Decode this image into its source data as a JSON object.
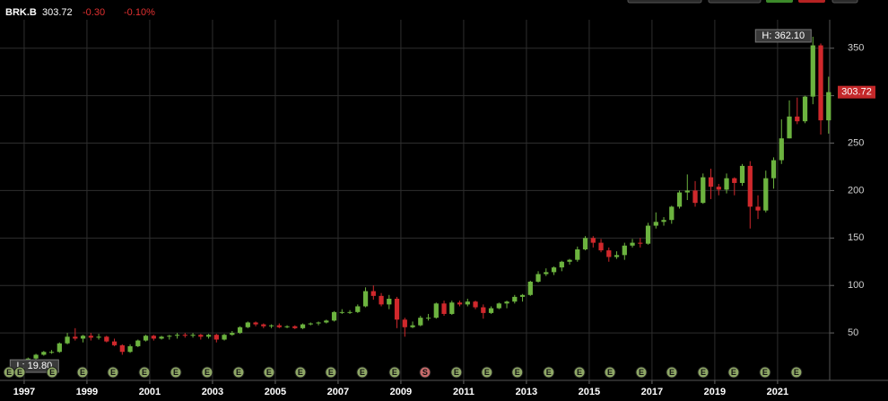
{
  "chart_data": {
    "type": "candlestick",
    "title": "BRK.B",
    "change": "-0.30",
    "change_pct": "-0.10%",
    "high_label": "H: 362.10",
    "low_label": "L: 19.80",
    "up_color": "#6cb33f",
    "down_color": "#d0282c",
    "grid": true,
    "xlim": [
      1996.23,
      2022.66
    ],
    "ylim": [
      0,
      380
    ],
    "xticks": [
      1997,
      1999,
      2001,
      2003,
      2005,
      2007,
      2009,
      2011,
      2013,
      2015,
      2017,
      2019,
      2021
    ],
    "yticks": [
      50,
      100,
      150,
      200,
      250,
      300,
      350
    ],
    "x": [
      1997.125,
      1997.375,
      1997.625,
      1997.875,
      1998.125,
      1998.375,
      1998.625,
      1998.875,
      1999.125,
      1999.375,
      1999.625,
      1999.875,
      2000.125,
      2000.375,
      2000.625,
      2000.875,
      2001.125,
      2001.375,
      2001.625,
      2001.875,
      2002.125,
      2002.375,
      2002.625,
      2002.875,
      2003.125,
      2003.375,
      2003.625,
      2003.875,
      2004.125,
      2004.375,
      2004.625,
      2004.875,
      2005.125,
      2005.375,
      2005.625,
      2005.875,
      2006.125,
      2006.375,
      2006.625,
      2006.875,
      2007.125,
      2007.375,
      2007.625,
      2007.875,
      2008.125,
      2008.375,
      2008.625,
      2008.875,
      2009.125,
      2009.375,
      2009.625,
      2009.875,
      2010.125,
      2010.375,
      2010.625,
      2010.875,
      2011.125,
      2011.375,
      2011.625,
      2011.875,
      2012.125,
      2012.375,
      2012.625,
      2012.875,
      2013.125,
      2013.375,
      2013.625,
      2013.875,
      2014.125,
      2014.375,
      2014.625,
      2014.875,
      2015.125,
      2015.375,
      2015.625,
      2015.875,
      2016.125,
      2016.375,
      2016.625,
      2016.875,
      2017.125,
      2017.375,
      2017.625,
      2017.875,
      2018.125,
      2018.375,
      2018.625,
      2018.875,
      2019.125,
      2019.375,
      2019.625,
      2019.875,
      2020.125,
      2020.375,
      2020.625,
      2020.875,
      2021.125,
      2021.375,
      2021.625,
      2021.875,
      2022.125,
      2022.375,
      2022.625
    ],
    "ohlc": [
      [
        20,
        24,
        19.8,
        23
      ],
      [
        23,
        28,
        22,
        27
      ],
      [
        27,
        31,
        26,
        30
      ],
      [
        30,
        32,
        28,
        30
      ],
      [
        30,
        40,
        29,
        39
      ],
      [
        39,
        50,
        38,
        46
      ],
      [
        46,
        55,
        42,
        44
      ],
      [
        44,
        48,
        40,
        47
      ],
      [
        47,
        50,
        42,
        45
      ],
      [
        45,
        49,
        43,
        46
      ],
      [
        46,
        47,
        40,
        41
      ],
      [
        41,
        44,
        36,
        37
      ],
      [
        37,
        38,
        27,
        30
      ],
      [
        30,
        38,
        29,
        36
      ],
      [
        36,
        43,
        35,
        42
      ],
      [
        42,
        48,
        41,
        47
      ],
      [
        47,
        48,
        42,
        44
      ],
      [
        44,
        47,
        43,
        46
      ],
      [
        46,
        48,
        43,
        47
      ],
      [
        47,
        50,
        44,
        48
      ],
      [
        48,
        50,
        45,
        47
      ],
      [
        47,
        50,
        45,
        48
      ],
      [
        48,
        49,
        43,
        46
      ],
      [
        46,
        49,
        44,
        48
      ],
      [
        48,
        49,
        40,
        43
      ],
      [
        43,
        49,
        42,
        48
      ],
      [
        48,
        52,
        47,
        50
      ],
      [
        50,
        57,
        49,
        56
      ],
      [
        56,
        62,
        55,
        61
      ],
      [
        61,
        62,
        57,
        59
      ],
      [
        59,
        60,
        55,
        57
      ],
      [
        57,
        59,
        55,
        58
      ],
      [
        58,
        60,
        55,
        56
      ],
      [
        56,
        58,
        55,
        57
      ],
      [
        57,
        58,
        54,
        55
      ],
      [
        55,
        60,
        54,
        59
      ],
      [
        59,
        61,
        58,
        60
      ],
      [
        60,
        62,
        58,
        61
      ],
      [
        61,
        64,
        60,
        63
      ],
      [
        63,
        73,
        62,
        72
      ],
      [
        72,
        75,
        70,
        72
      ],
      [
        72,
        74,
        70,
        72
      ],
      [
        72,
        80,
        71,
        78
      ],
      [
        78,
        98,
        77,
        94
      ],
      [
        94,
        100,
        85,
        89
      ],
      [
        89,
        92,
        78,
        80
      ],
      [
        80,
        90,
        75,
        86
      ],
      [
        86,
        88,
        55,
        64
      ],
      [
        64,
        66,
        46,
        56
      ],
      [
        56,
        62,
        55,
        58
      ],
      [
        58,
        68,
        57,
        66
      ],
      [
        66,
        70,
        63,
        66
      ],
      [
        66,
        82,
        65,
        81
      ],
      [
        81,
        84,
        68,
        70
      ],
      [
        70,
        84,
        69,
        82
      ],
      [
        82,
        84,
        78,
        80
      ],
      [
        80,
        86,
        78,
        83
      ],
      [
        83,
        84,
        75,
        77
      ],
      [
        77,
        80,
        65,
        71
      ],
      [
        71,
        78,
        70,
        76
      ],
      [
        76,
        82,
        75,
        81
      ],
      [
        81,
        84,
        76,
        83
      ],
      [
        83,
        90,
        81,
        88
      ],
      [
        88,
        91,
        83,
        90
      ],
      [
        90,
        105,
        89,
        104
      ],
      [
        104,
        115,
        103,
        112
      ],
      [
        112,
        118,
        110,
        114
      ],
      [
        114,
        120,
        111,
        119
      ],
      [
        119,
        126,
        115,
        125
      ],
      [
        125,
        128,
        122,
        127
      ],
      [
        127,
        141,
        125,
        138
      ],
      [
        138,
        152,
        137,
        150
      ],
      [
        150,
        152,
        140,
        145
      ],
      [
        145,
        149,
        135,
        137
      ],
      [
        137,
        140,
        125,
        130
      ],
      [
        130,
        136,
        128,
        132
      ],
      [
        132,
        145,
        127,
        142
      ],
      [
        142,
        149,
        140,
        145
      ],
      [
        145,
        150,
        140,
        144
      ],
      [
        144,
        166,
        143,
        163
      ],
      [
        163,
        177,
        160,
        167
      ],
      [
        167,
        172,
        163,
        169
      ],
      [
        169,
        184,
        165,
        183
      ],
      [
        183,
        200,
        181,
        198
      ],
      [
        198,
        217,
        190,
        200
      ],
      [
        200,
        210,
        183,
        187
      ],
      [
        187,
        218,
        186,
        214
      ],
      [
        214,
        223,
        191,
        204
      ],
      [
        204,
        207,
        195,
        201
      ],
      [
        201,
        218,
        197,
        213
      ],
      [
        213,
        214,
        195,
        208
      ],
      [
        208,
        228,
        205,
        226
      ],
      [
        226,
        231,
        160,
        183
      ],
      [
        183,
        195,
        170,
        179
      ],
      [
        179,
        221,
        177,
        213
      ],
      [
        213,
        235,
        202,
        232
      ],
      [
        232,
        275,
        228,
        255
      ],
      [
        255,
        295,
        255,
        278
      ],
      [
        278,
        298,
        270,
        273
      ],
      [
        273,
        300,
        271,
        299
      ],
      [
        299,
        362.1,
        291,
        353
      ],
      [
        353,
        355,
        259,
        274
      ],
      [
        274,
        320,
        260,
        303.72
      ]
    ],
    "events": [
      {
        "x": 1996.52,
        "label": "E"
      },
      {
        "x": 1996.86,
        "label": "E"
      },
      {
        "x": 1997.89,
        "label": "E"
      },
      {
        "x": 1998.86,
        "label": "E"
      },
      {
        "x": 1999.83,
        "label": "E"
      },
      {
        "x": 2000.83,
        "label": "E"
      },
      {
        "x": 2001.83,
        "label": "E"
      },
      {
        "x": 2002.83,
        "label": "E"
      },
      {
        "x": 2003.83,
        "label": "E"
      },
      {
        "x": 2004.8,
        "label": "E"
      },
      {
        "x": 2005.8,
        "label": "E"
      },
      {
        "x": 2006.77,
        "label": "E"
      },
      {
        "x": 2007.77,
        "label": "E"
      },
      {
        "x": 2008.8,
        "label": "E"
      },
      {
        "x": 2009.77,
        "label": "S"
      },
      {
        "x": 2010.77,
        "label": "E"
      },
      {
        "x": 2011.74,
        "label": "E"
      },
      {
        "x": 2012.71,
        "label": "E"
      },
      {
        "x": 2013.71,
        "label": "E"
      },
      {
        "x": 2014.69,
        "label": "E"
      },
      {
        "x": 2015.66,
        "label": "E"
      },
      {
        "x": 2016.66,
        "label": "E"
      },
      {
        "x": 2017.63,
        "label": "E"
      },
      {
        "x": 2018.63,
        "label": "E"
      },
      {
        "x": 2019.6,
        "label": "E"
      },
      {
        "x": 2020.6,
        "label": "E"
      },
      {
        "x": 2021.6,
        "label": "E"
      }
    ]
  }
}
